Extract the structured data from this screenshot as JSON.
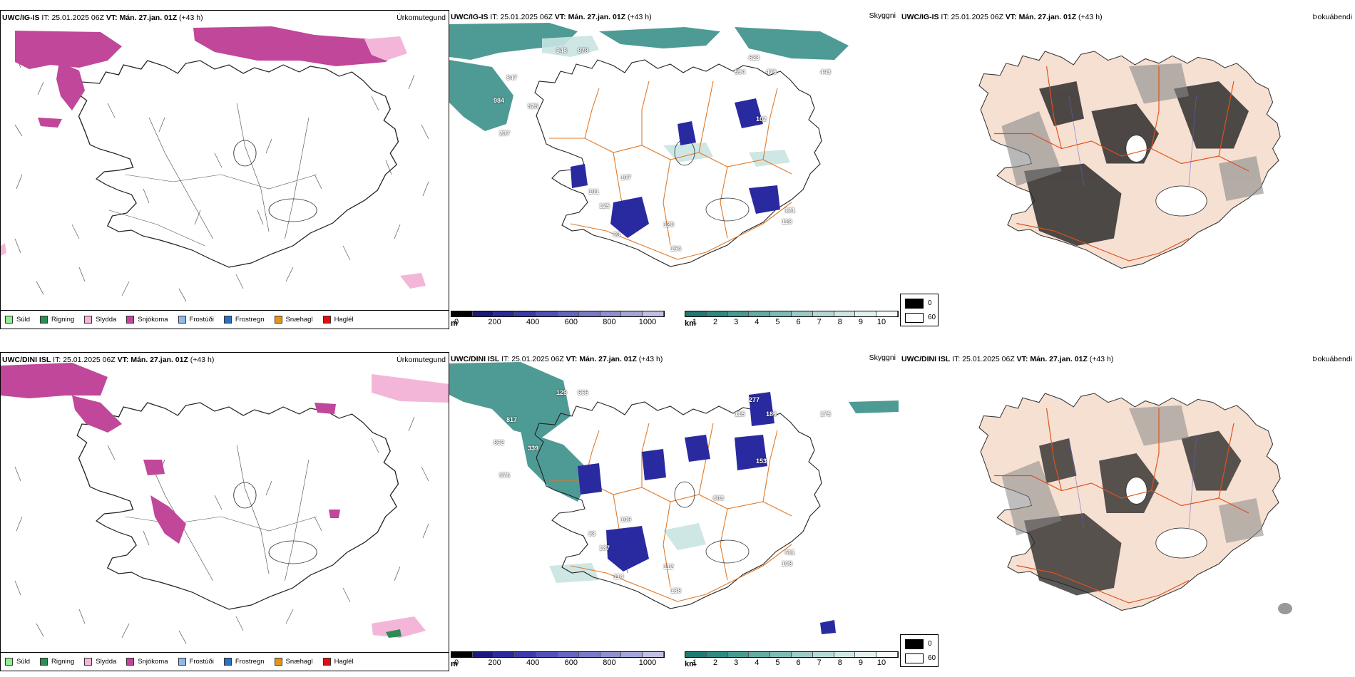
{
  "rows": [
    {
      "model": "UWC/IG-IS",
      "it_label": "IT:",
      "it_value": "25.01.2025 06Z",
      "vt_label": "VT:",
      "vt_value": "Mán. 27.jan. 01Z",
      "lead": "(+43 h)",
      "precip_title": "Úrkomutegund",
      "vis_title": "Skyggni",
      "fog_title": "Þokuábendi",
      "vis_labels": [
        "847",
        "984",
        "525",
        "237",
        "948",
        "878",
        "623",
        "594",
        "476",
        "443",
        "102",
        "121",
        "118",
        "120",
        "154",
        "93",
        "101",
        "125",
        "107"
      ]
    },
    {
      "model": "UWC/DINI ISL",
      "it_label": "IT:",
      "it_value": "25.01.2025 06Z",
      "vt_label": "VT:",
      "vt_value": "Mán. 27.jan. 01Z",
      "lead": "(+43 h)",
      "precip_title": "Úrkomutegund",
      "vis_title": "Skyggni",
      "fog_title": "Þokuábendi",
      "vis_labels": [
        "817",
        "862",
        "339",
        "576",
        "129",
        "666",
        "277",
        "115",
        "186",
        "175",
        "153",
        "411",
        "108",
        "112",
        "138",
        "114",
        "93",
        "137",
        "109",
        "603"
      ]
    }
  ],
  "precip_legend": [
    {
      "label": "Súld",
      "color": "#90ee90"
    },
    {
      "label": "Rigning",
      "color": "#2e8b57"
    },
    {
      "label": "Slydda",
      "color": "#f4b6d8"
    },
    {
      "label": "Snjókoma",
      "color": "#c0479a"
    },
    {
      "label": "Frostúði",
      "color": "#8fb9ea"
    },
    {
      "label": "Frostregn",
      "color": "#2f6fc0"
    },
    {
      "label": "Snæhagl",
      "color": "#e8941a"
    },
    {
      "label": "Haglél",
      "color": "#e01010"
    }
  ],
  "ceiling_scale": {
    "unit": "m",
    "ticks": [
      "0",
      "200",
      "400",
      "600",
      "800",
      "1000"
    ],
    "colors": [
      "#000000",
      "#1a1a7a",
      "#2a2a9a",
      "#3a3aa8",
      "#5050b5",
      "#6565c0",
      "#7a7ac8",
      "#9090d0",
      "#a5a5da",
      "#c0c0e6"
    ]
  },
  "visibility_scale": {
    "unit": "km",
    "ticks": [
      "1",
      "2",
      "3",
      "4",
      "5",
      "6",
      "7",
      "8",
      "9",
      "10"
    ],
    "colors": [
      "#1e7a72",
      "#2f8a82",
      "#4a9a92",
      "#65aaa3",
      "#80bab4",
      "#9ccac5",
      "#b6d8d4",
      "#cde6e3",
      "#e2f1ef",
      "#f6fbfa"
    ]
  },
  "fog_legend": [
    {
      "label": "0",
      "color": "#000000"
    },
    {
      "label": "60",
      "color": "#ffffff"
    }
  ],
  "colors": {
    "snow": "#c0479a",
    "sleet": "#f4b6d8",
    "rain": "#2e8b57",
    "low_cloud": "#2a2aa0",
    "vis_teal": "#2f8a82",
    "roads": "#e07a2a",
    "land_tint": "#f6e0d2"
  }
}
